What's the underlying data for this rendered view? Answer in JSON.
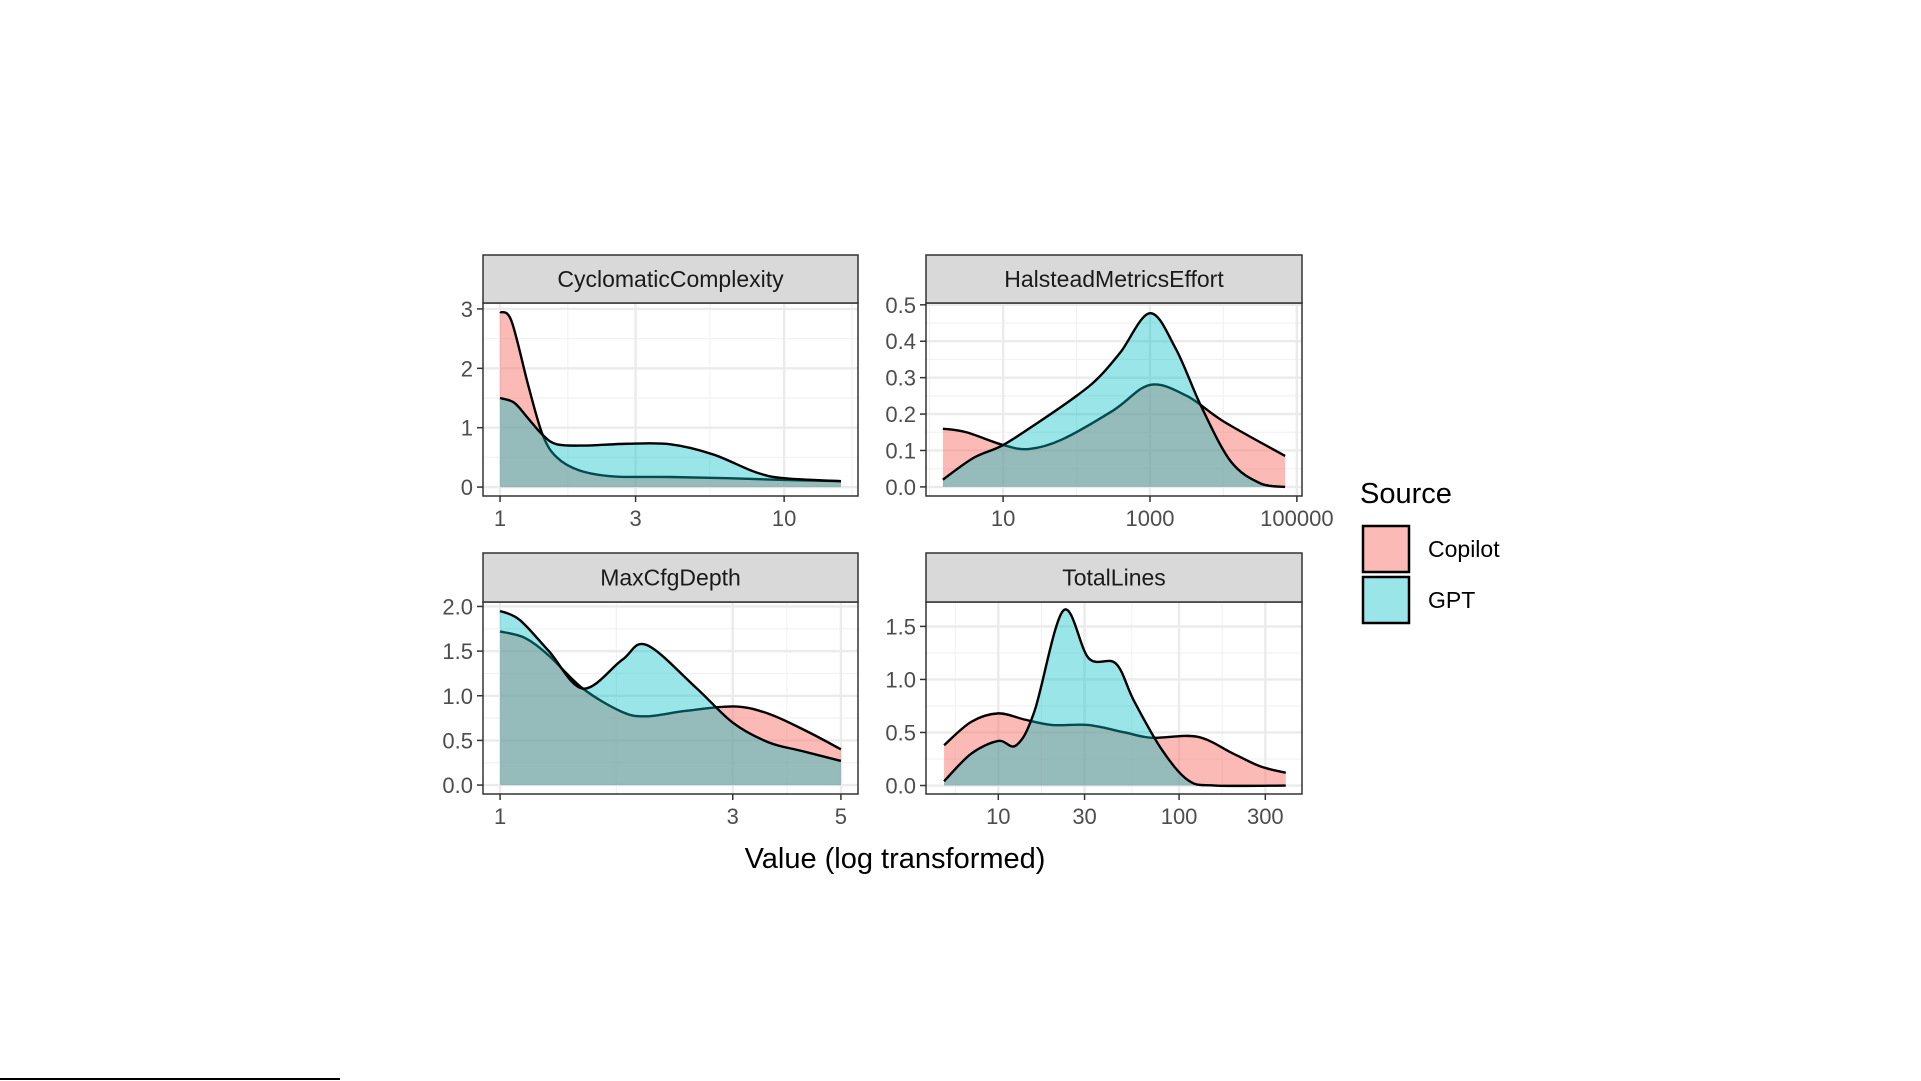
{
  "chart_data": {
    "type": "area",
    "kind": "faceted density plot",
    "xlabel": "Value (log transformed)",
    "ylabel": "",
    "legend": {
      "title": "Source",
      "placement": "right",
      "entries": [
        "Copilot",
        "GPT"
      ]
    },
    "colors": {
      "Copilot": "#F8766D",
      "GPT": "#00BFC4"
    },
    "grid": true,
    "panels": [
      {
        "title": "CyclomaticComplexity",
        "x_scale": "log10",
        "xlim_log10": [
          -0.06,
          1.26
        ],
        "ylim": [
          -0.15,
          3.1
        ],
        "x_ticks": [
          {
            "value": 1,
            "label": "1"
          },
          {
            "value": 3,
            "label": "3"
          },
          {
            "value": 10,
            "label": "10"
          }
        ],
        "y_ticks": [
          {
            "value": 0,
            "label": "0"
          },
          {
            "value": 1,
            "label": "1"
          },
          {
            "value": 2,
            "label": "2"
          },
          {
            "value": 3,
            "label": "3"
          }
        ],
        "series": [
          {
            "name": "Copilot",
            "x_log10": [
              0,
              0.04,
              0.1,
              0.15,
              0.2,
              0.28,
              0.4,
              0.6,
              0.8,
              1.0,
              1.2
            ],
            "density": [
              2.95,
              2.8,
              1.7,
              0.88,
              0.5,
              0.28,
              0.18,
              0.17,
              0.15,
              0.12,
              0.1
            ]
          },
          {
            "name": "GPT",
            "x_log10": [
              0,
              0.05,
              0.1,
              0.15,
              0.2,
              0.3,
              0.45,
              0.6,
              0.75,
              0.9,
              1.0,
              1.2
            ],
            "density": [
              1.5,
              1.42,
              1.15,
              0.88,
              0.72,
              0.7,
              0.73,
              0.72,
              0.55,
              0.25,
              0.15,
              0.1
            ]
          }
        ]
      },
      {
        "title": "HalsteadMetricsEffort",
        "x_scale": "log10",
        "xlim_log10": [
          -0.05,
          5.07
        ],
        "ylim": [
          -0.025,
          0.505
        ],
        "x_ticks": [
          {
            "value": 10,
            "label": "10"
          },
          {
            "value": 1000,
            "label": "1000"
          },
          {
            "value": 100000,
            "label": "100000"
          }
        ],
        "y_ticks": [
          {
            "value": 0,
            "label": "0.0"
          },
          {
            "value": 0.1,
            "label": "0.1"
          },
          {
            "value": 0.2,
            "label": "0.2"
          },
          {
            "value": 0.3,
            "label": "0.3"
          },
          {
            "value": 0.4,
            "label": "0.4"
          },
          {
            "value": 0.5,
            "label": "0.5"
          }
        ],
        "series": [
          {
            "name": "Copilot",
            "x_log10": [
              0.18,
              0.5,
              1.0,
              1.35,
              1.8,
              2.5,
              3.0,
              3.5,
              4.0,
              4.84
            ],
            "density": [
              0.16,
              0.15,
              0.115,
              0.104,
              0.13,
              0.21,
              0.28,
              0.25,
              0.18,
              0.085
            ]
          },
          {
            "name": "GPT",
            "x_log10": [
              0.18,
              0.6,
              1.0,
              1.5,
              2.0,
              2.3,
              2.6,
              3.0,
              3.35,
              3.7,
              4.1,
              4.5,
              4.84
            ],
            "density": [
              0.02,
              0.08,
              0.115,
              0.18,
              0.25,
              0.3,
              0.37,
              0.477,
              0.38,
              0.22,
              0.07,
              0.01,
              0.0
            ]
          }
        ]
      },
      {
        "title": "MaxCfgDepth",
        "x_scale": "log10",
        "xlim_log10": [
          -0.035,
          0.734
        ],
        "ylim": [
          -0.1,
          2.05
        ],
        "x_ticks": [
          {
            "value": 1,
            "label": "1"
          },
          {
            "value": 3,
            "label": "3"
          },
          {
            "value": 5,
            "label": "5"
          }
        ],
        "y_ticks": [
          {
            "value": 0,
            "label": "0.0"
          },
          {
            "value": 0.5,
            "label": "0.5"
          },
          {
            "value": 1,
            "label": "1.0"
          },
          {
            "value": 1.5,
            "label": "1.5"
          },
          {
            "value": 2,
            "label": "2.0"
          }
        ],
        "series": [
          {
            "name": "Copilot",
            "x_log10": [
              0,
              0.05,
              0.1,
              0.17,
              0.25,
              0.3,
              0.38,
              0.48,
              0.55,
              0.63,
              0.699
            ],
            "density": [
              1.72,
              1.65,
              1.45,
              1.08,
              0.82,
              0.77,
              0.83,
              0.88,
              0.8,
              0.6,
              0.4
            ]
          },
          {
            "name": "GPT",
            "x_log10": [
              0,
              0.04,
              0.1,
              0.17,
              0.25,
              0.3,
              0.4,
              0.477,
              0.55,
              0.62,
              0.699
            ],
            "density": [
              1.95,
              1.85,
              1.5,
              1.08,
              1.4,
              1.57,
              1.1,
              0.7,
              0.48,
              0.38,
              0.27
            ]
          }
        ]
      },
      {
        "title": "TotalLines",
        "x_scale": "log10",
        "xlim_log10": [
          0.6,
          2.68
        ],
        "ylim": [
          -0.08,
          1.73
        ],
        "x_ticks": [
          {
            "value": 10,
            "label": "10"
          },
          {
            "value": 30,
            "label": "30"
          },
          {
            "value": 100,
            "label": "100"
          },
          {
            "value": 300,
            "label": "300"
          }
        ],
        "y_ticks": [
          {
            "value": 0,
            "label": "0.0"
          },
          {
            "value": 0.5,
            "label": "0.5"
          },
          {
            "value": 1,
            "label": "1.0"
          },
          {
            "value": 1.5,
            "label": "1.5"
          }
        ],
        "series": [
          {
            "name": "Copilot",
            "x_log10": [
              0.7,
              0.85,
              1.0,
              1.15,
              1.3,
              1.5,
              1.7,
              1.85,
              2.1,
              2.3,
              2.45,
              2.59
            ],
            "density": [
              0.38,
              0.6,
              0.68,
              0.62,
              0.57,
              0.57,
              0.5,
              0.45,
              0.46,
              0.3,
              0.18,
              0.12
            ]
          },
          {
            "name": "GPT",
            "x_log10": [
              0.7,
              0.85,
              1.0,
              1.1,
              1.2,
              1.36,
              1.5,
              1.65,
              1.75,
              1.9,
              2.05,
              2.2,
              2.59
            ],
            "density": [
              0.04,
              0.3,
              0.42,
              0.38,
              0.7,
              1.65,
              1.2,
              1.15,
              0.8,
              0.35,
              0.05,
              0.0,
              0.0
            ]
          }
        ]
      }
    ]
  }
}
